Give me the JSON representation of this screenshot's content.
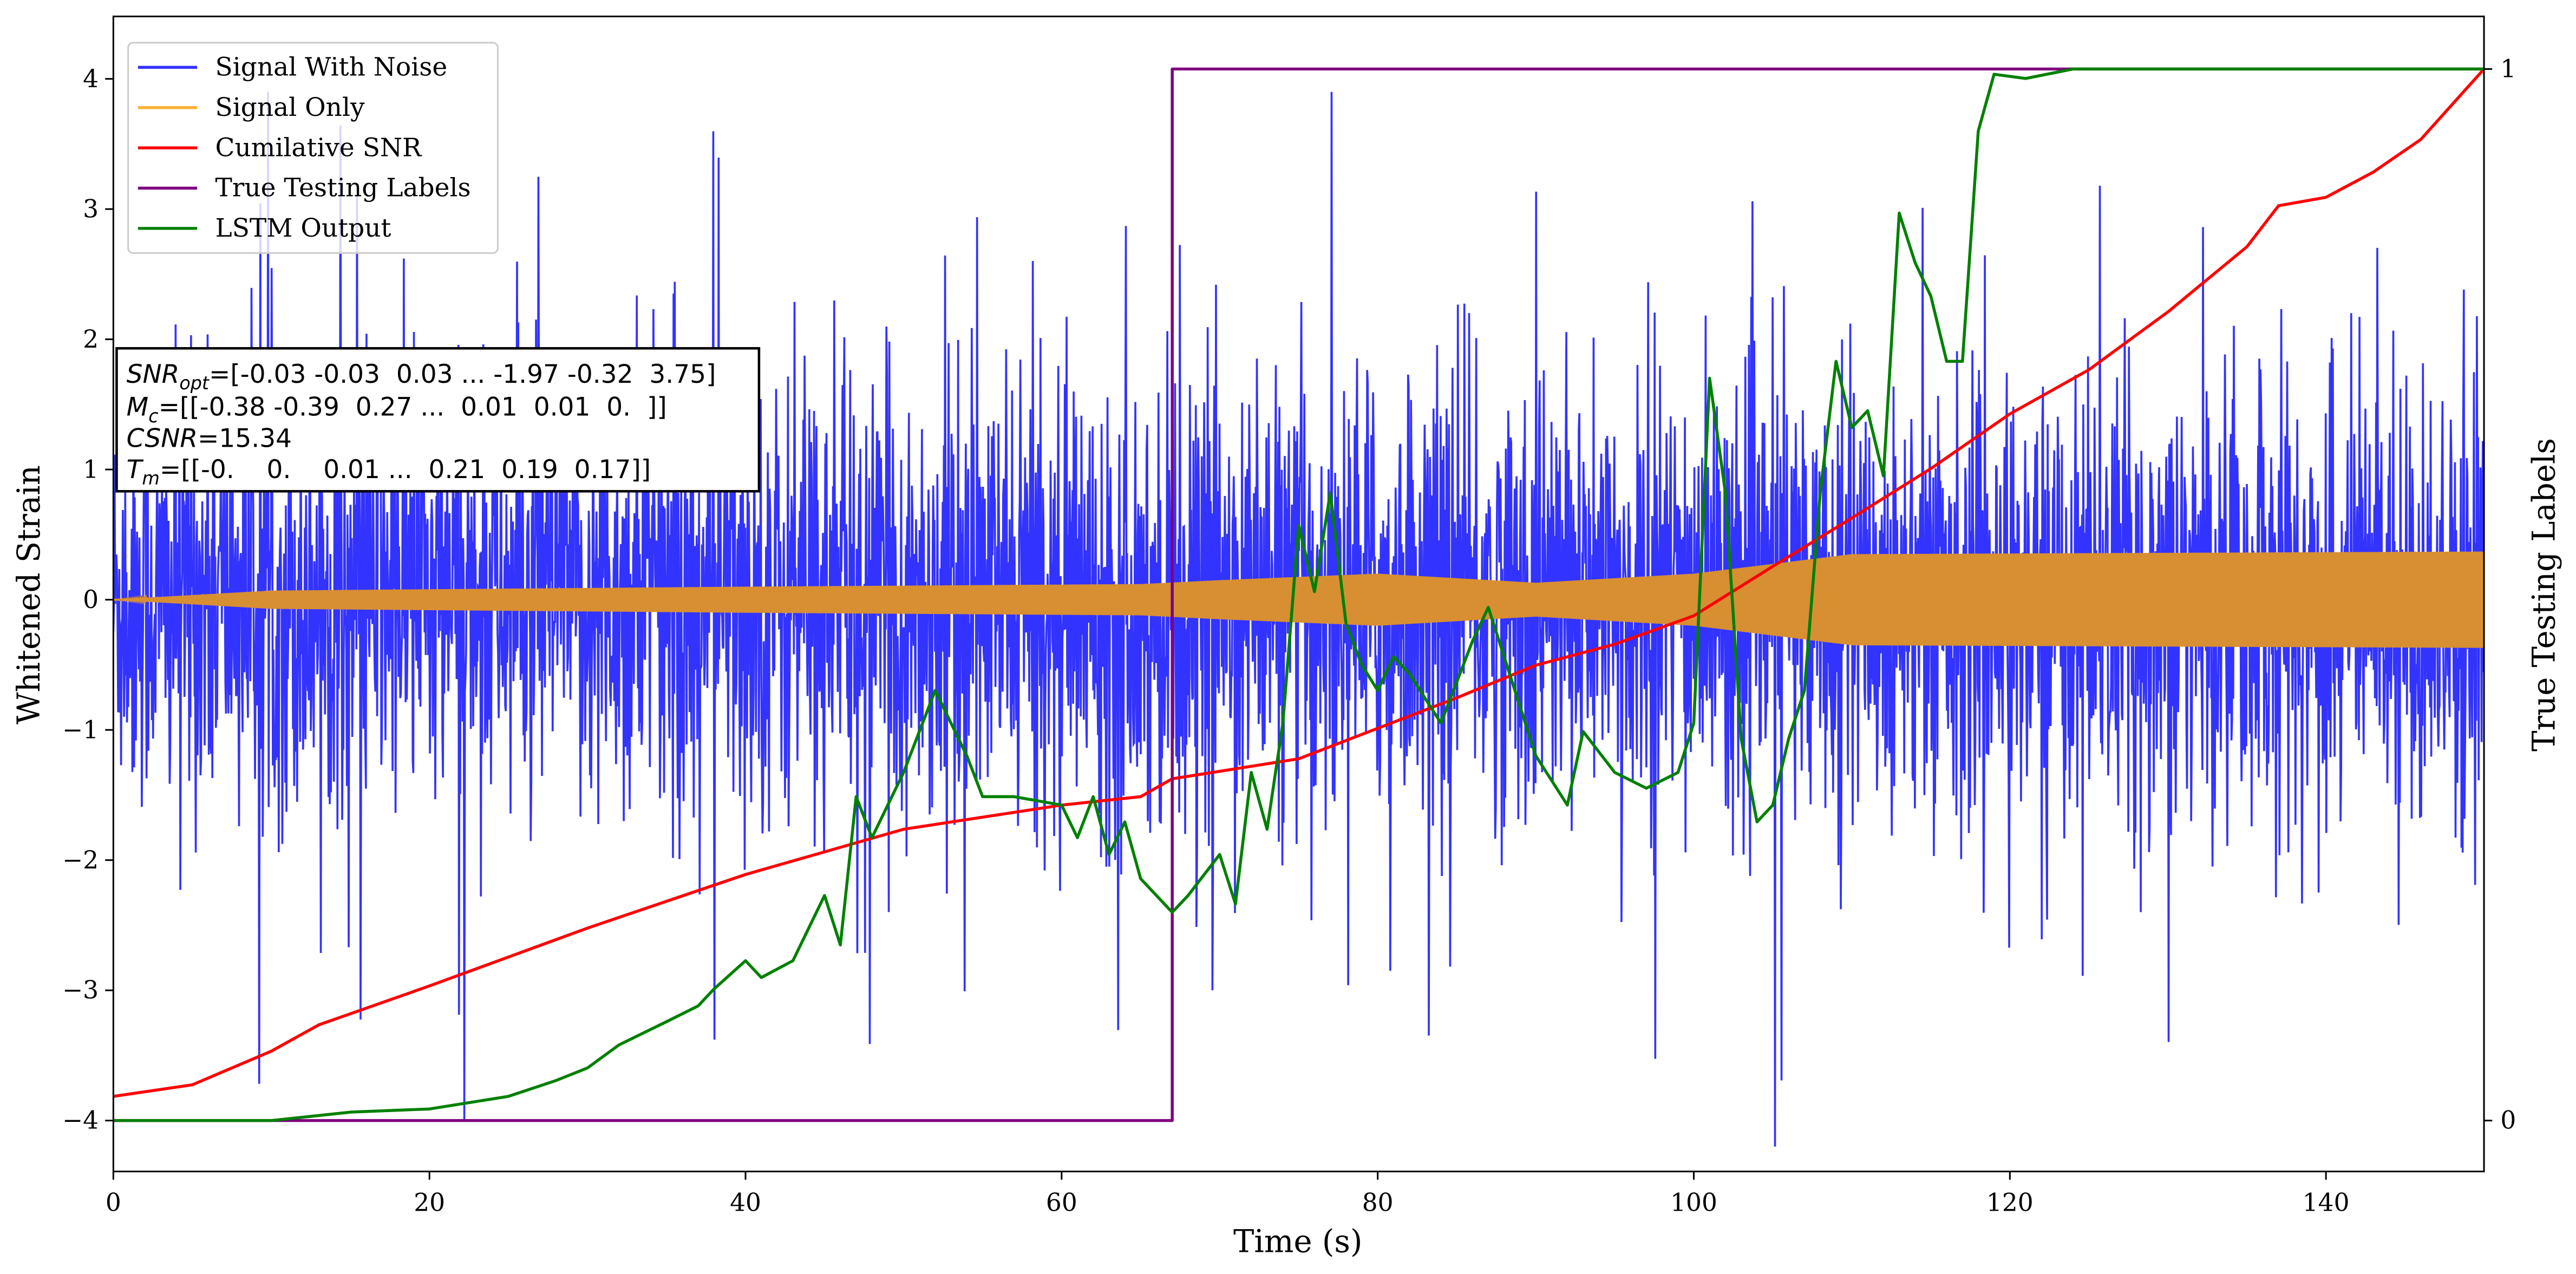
{
  "chart_data": {
    "type": "line",
    "xlabel": "Time (s)",
    "ylabel": "Whitened Strain",
    "y2label": "True Testing Labels",
    "xlim": [
      0,
      150
    ],
    "ylim": [
      -4.5,
      4.4
    ],
    "y2lim": [
      -0.05,
      1.05
    ],
    "xticks": [
      "0",
      "20",
      "40",
      "60",
      "80",
      "100",
      "120",
      "140"
    ],
    "yticks": [
      "−4",
      "−3",
      "−2",
      "−1",
      "0",
      "1",
      "2",
      "3",
      "4"
    ],
    "y2ticks": [
      "0",
      "1"
    ],
    "grid": false,
    "legend_position": "top-left",
    "series": [
      {
        "name": "Signal With Noise",
        "color": "#3333ff",
        "axis": "left",
        "description_values": {
          "std": 0.8,
          "min": -4.2,
          "max": 3.9
        }
      },
      {
        "name": "Signal Only",
        "color": "#ffb030",
        "axis": "left",
        "envelope": {
          "x": [
            0,
            10,
            40,
            65,
            70,
            80,
            90,
            100,
            110,
            150
          ],
          "amplitude": [
            0.0,
            0.07,
            0.1,
            0.12,
            0.15,
            0.2,
            0.13,
            0.2,
            0.35,
            0.37
          ]
        }
      },
      {
        "name": "Cumilative SNR",
        "color": "#ff0000",
        "axis": "right",
        "x": [
          0,
          5,
          10,
          13,
          20,
          30,
          40,
          50,
          60,
          65,
          67,
          75,
          80,
          85,
          90,
          95,
          100,
          105,
          110,
          115,
          120,
          125,
          130,
          135,
          137,
          140,
          143,
          146,
          150
        ],
        "y": [
          0.023,
          0.034,
          0.066,
          0.091,
          0.128,
          0.183,
          0.234,
          0.277,
          0.3,
          0.308,
          0.325,
          0.344,
          0.373,
          0.402,
          0.433,
          0.453,
          0.48,
          0.527,
          0.573,
          0.62,
          0.672,
          0.714,
          0.769,
          0.831,
          0.87,
          0.878,
          0.902,
          0.933,
          1.0
        ]
      },
      {
        "name": "True Testing Labels",
        "color": "#800080",
        "axis": "right",
        "x": [
          0,
          67,
          67,
          150
        ],
        "y": [
          0,
          0,
          1,
          1
        ]
      },
      {
        "name": "LSTM Output",
        "color": "#008000",
        "axis": "right",
        "x": [
          0,
          10,
          15,
          20,
          25,
          28,
          30,
          32,
          35,
          37,
          38,
          40,
          41,
          43,
          45,
          46,
          47,
          48,
          50,
          51,
          52,
          53,
          54,
          55,
          57,
          60,
          61,
          62,
          63,
          64,
          65,
          67,
          68,
          70,
          71,
          72,
          73,
          74,
          75,
          76,
          77,
          78,
          79,
          80,
          81,
          82,
          84,
          86,
          87,
          88,
          90,
          92,
          93,
          95,
          97,
          99,
          100,
          101,
          102,
          103,
          104,
          105,
          106,
          107,
          108,
          109,
          110,
          111,
          112,
          113,
          114,
          115,
          116,
          117,
          118,
          119,
          121,
          124,
          150
        ],
        "y": [
          0,
          0,
          0.008,
          0.011,
          0.023,
          0.038,
          0.05,
          0.072,
          0.094,
          0.109,
          0.125,
          0.152,
          0.136,
          0.152,
          0.214,
          0.167,
          0.308,
          0.269,
          0.331,
          0.37,
          0.409,
          0.378,
          0.347,
          0.308,
          0.308,
          0.3,
          0.269,
          0.308,
          0.253,
          0.284,
          0.23,
          0.198,
          0.214,
          0.253,
          0.206,
          0.331,
          0.277,
          0.378,
          0.566,
          0.503,
          0.597,
          0.472,
          0.433,
          0.409,
          0.441,
          0.425,
          0.378,
          0.456,
          0.488,
          0.441,
          0.347,
          0.3,
          0.37,
          0.331,
          0.316,
          0.331,
          0.378,
          0.706,
          0.597,
          0.363,
          0.284,
          0.3,
          0.363,
          0.409,
          0.597,
          0.722,
          0.659,
          0.675,
          0.613,
          0.863,
          0.816,
          0.784,
          0.722,
          0.722,
          0.941,
          0.995,
          0.991,
          1.0,
          1.0
        ]
      }
    ],
    "annotation": {
      "snr_opt_label": "SNR",
      "snr_opt_sub": "opt",
      "snr_opt_value": "=[-0.03 -0.03  0.03 ... -1.97 -0.32  3.75]",
      "mc_label": "M",
      "mc_sub": "c",
      "mc_value": "=[[-0.38 -0.39  0.27 ...  0.01  0.01  0.  ]]",
      "csnr_label": "CSNR",
      "csnr_value": "=15.34",
      "tm_label": "T",
      "tm_sub": "m",
      "tm_value": "=[[-0.    0.    0.01 ...  0.21  0.19  0.17]]"
    }
  }
}
